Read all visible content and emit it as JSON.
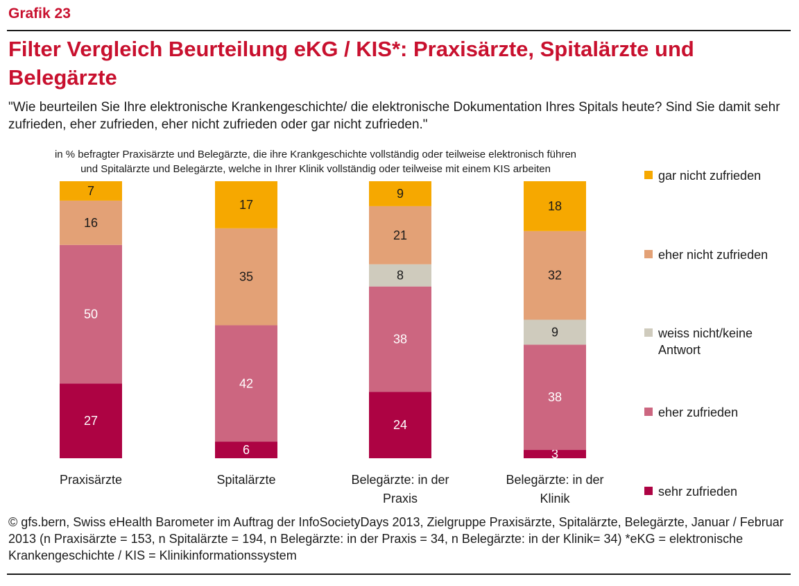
{
  "header": {
    "label": "Grafik 23",
    "title": "Filter Vergleich Beurteilung eKG / KIS*: Praxisärzte, Spitalärzte und Belegärzte",
    "question": "\"Wie beurteilen Sie Ihre elektronische Krankengeschichte/ die elektronische Dokumentation Ihres Spitals  heute? Sind Sie damit sehr zufrieden, eher zufrieden, eher nicht zufrieden oder gar nicht zufrieden.\"",
    "subtitle_line1": "in % befragter Praxisärzte und Belegärzte, die ihre Krankgeschichte vollständig oder teilweise elektronisch führen",
    "subtitle_line2": "und Spitalärzte und Belegärzte, welche in Ihrer Klinik vollständig oder teilweise mit einem KIS arbeiten"
  },
  "chart_data": {
    "type": "bar",
    "stacked": true,
    "ylim": [
      0,
      100
    ],
    "grid": false,
    "legend_position": "right",
    "categories": [
      [
        "Praxisärzte"
      ],
      [
        "Spitalärzte"
      ],
      [
        "Belegärzte: in der",
        "Praxis"
      ],
      [
        "Belegärzte: in der",
        "Klinik"
      ]
    ],
    "series": [
      {
        "name": "sehr zufrieden",
        "color": "#ad0343",
        "values": [
          27,
          6,
          24,
          3
        ]
      },
      {
        "name": "eher zufrieden",
        "color": "#cc6680",
        "values": [
          50,
          42,
          38,
          38
        ]
      },
      {
        "name": [
          "weiss nicht/keine",
          "Antwort"
        ],
        "color": "#cfcbbd",
        "values": [
          0,
          0,
          8,
          9
        ]
      },
      {
        "name": "eher nicht zufrieden",
        "color": "#e3a176",
        "values": [
          16,
          35,
          21,
          32
        ]
      },
      {
        "name": "gar nicht zufrieden",
        "color": "#f6a800",
        "values": [
          7,
          17,
          9,
          18
        ]
      }
    ],
    "label_colors": {
      "sehr zufrieden": "#ffffff",
      "eher zufrieden": "#ffffff",
      "weiss nicht/keine Antwort": "#1a1a1a",
      "eher nicht zufrieden": "#1a1a1a",
      "gar nicht zufrieden": "#1a1a1a"
    }
  },
  "footer": {
    "text": "© gfs.bern, Swiss eHealth Barometer im Auftrag der InfoSocietyDays 2013, Zielgruppe Praxisärzte, Spitalärzte, Belegärzte, Januar / Februar 2013 (n Praxisärzte = 153, n Spitalärzte = 194, n Belegärzte: in der Praxis = 34, n Belegärzte: in der Klinik= 34) *eKG = elektronische Krankengeschichte / KIS = Klinikinformationssystem"
  }
}
